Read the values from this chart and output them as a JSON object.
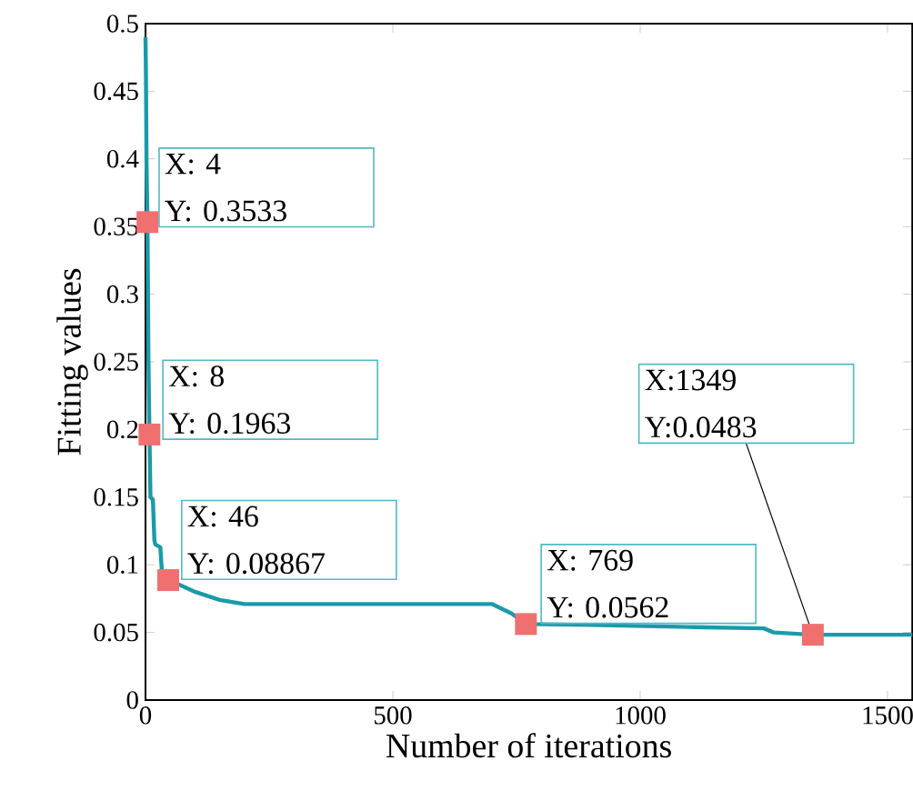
{
  "chart_data": {
    "type": "line",
    "xlabel": "Number of iterations",
    "ylabel": "Fitting values",
    "x": [
      0,
      1,
      2,
      4,
      6,
      8,
      10,
      15,
      18,
      20,
      30,
      34,
      46,
      70,
      100,
      150,
      200,
      400,
      700,
      740,
      769,
      900,
      1100,
      1250,
      1270,
      1349,
      1550
    ],
    "values": [
      0.49,
      0.46,
      0.4,
      0.3533,
      0.25,
      0.1963,
      0.15,
      0.148,
      0.118,
      0.115,
      0.113,
      0.09,
      0.08867,
      0.085,
      0.08,
      0.074,
      0.071,
      0.071,
      0.071,
      0.064,
      0.0562,
      0.0555,
      0.054,
      0.053,
      0.05,
      0.0483,
      0.0483
    ],
    "color": "#1a9aa8",
    "xlim": [
      0,
      1550
    ],
    "ylim": [
      0,
      0.5
    ],
    "xticks": [
      0,
      500,
      1000,
      1500
    ],
    "yticks": [
      0,
      0.05,
      0.1,
      0.15,
      0.2,
      0.25,
      0.3,
      0.35,
      0.4,
      0.45,
      0.5
    ],
    "annotations": [
      {
        "text": "X: 4",
        "x": 4,
        "y": 0.3533
      },
      {
        "text": "Y: 0.3533",
        "x": 4,
        "y": 0.3533
      },
      {
        "text": "X: 8",
        "x": 8,
        "y": 0.1963
      },
      {
        "text": "Y: 0.1963",
        "x": 8,
        "y": 0.1963
      },
      {
        "text": "X: 46",
        "x": 46,
        "y": 0.08867
      },
      {
        "text": "Y: 0.08867",
        "x": 46,
        "y": 0.08867
      },
      {
        "text": "X: 769",
        "x": 769,
        "y": 0.0562
      },
      {
        "text": "Y: 0.0562",
        "x": 769,
        "y": 0.0562
      },
      "X:1349",
      {
        "text": "Y:0.0483",
        "x": 1349,
        "y": 0.0483
      }
    ]
  }
}
